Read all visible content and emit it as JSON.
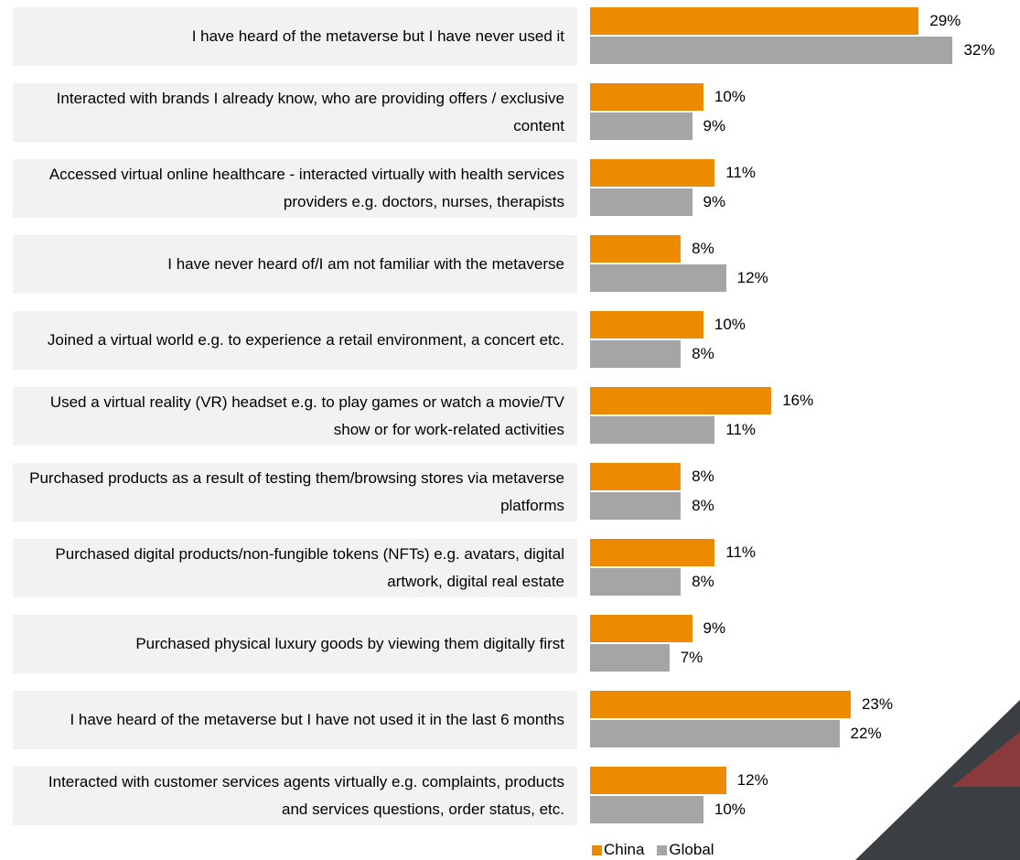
{
  "chart_data": {
    "type": "hbar",
    "categories": [
      "I have heard of the metaverse but I have never used it",
      "Interacted with brands I already know, who are providing offers / exclusive content",
      "Accessed virtual online healthcare - interacted virtually with health services providers e.g. doctors, nurses, therapists",
      "I have never heard of/I am not familiar with the metaverse",
      "Joined a virtual world e.g. to experience a retail environment, a concert etc.",
      "Used a virtual reality (VR) headset e.g. to play games or watch a movie/TV show or for work-related activities",
      "Purchased products as a result of testing them/browsing stores via metaverse platforms",
      "Purchased digital products/non-fungible tokens (NFTs) e.g. avatars, digital artwork, digital real estate",
      "Purchased physical luxury goods by viewing them digitally first",
      "I have heard of the metaverse but I have not used it in the last 6 months",
      "Interacted with customer services agents virtually e.g. complaints, products and services questions, order status, etc."
    ],
    "series": [
      {
        "name": "China",
        "color": "#ed8b00",
        "values": [
          29,
          10,
          11,
          8,
          10,
          16,
          8,
          11,
          9,
          23,
          12
        ],
        "value_labels": [
          "29%",
          "10%",
          "11%",
          "8%",
          "10%",
          "16%",
          "8%",
          "11%",
          "9%",
          "23%",
          "12%"
        ]
      },
      {
        "name": "Global",
        "color": "#a5a5a5",
        "values": [
          32,
          9,
          9,
          12,
          8,
          11,
          8,
          8,
          7,
          22,
          10
        ],
        "value_labels": [
          "32%",
          "9%",
          "9%",
          "12%",
          "8%",
          "11%",
          "8%",
          "8%",
          "7%",
          "22%",
          "10%"
        ]
      }
    ],
    "xlim": [
      0,
      36
    ],
    "legend": "bottom"
  }
}
